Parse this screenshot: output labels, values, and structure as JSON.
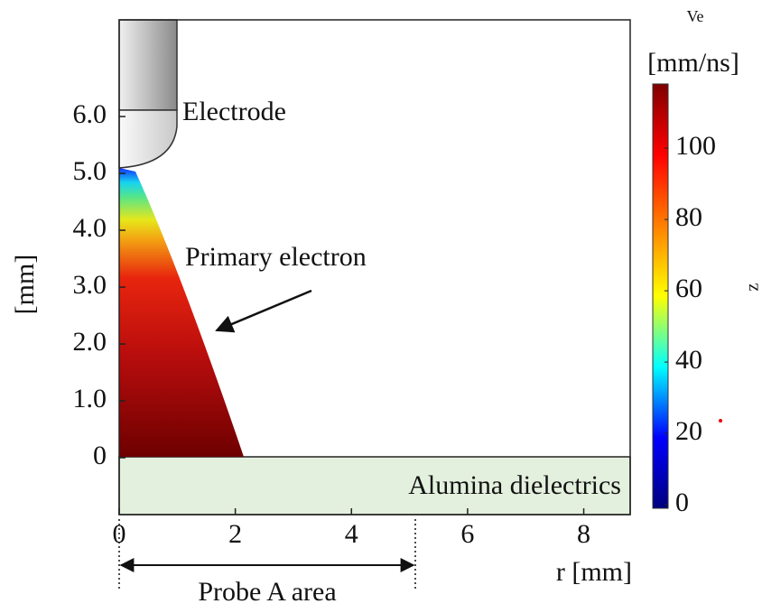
{
  "chart_data": {
    "type": "contour",
    "x_label": "r [mm]",
    "y_label": "[mm]",
    "xlim": [
      0,
      8.8
    ],
    "ylim": [
      -1,
      7.7
    ],
    "xticks": [
      0,
      2,
      4,
      6,
      8
    ],
    "yticks": [
      0,
      {
        "value": 1,
        "label": "1.0"
      },
      {
        "value": 2,
        "label": "2.0"
      },
      {
        "value": 3,
        "label": "3.0"
      },
      {
        "value": 4,
        "label": "4.0"
      },
      {
        "value": 5,
        "label": "5.0"
      },
      {
        "value": 6,
        "label": "6.0"
      }
    ],
    "colorbar": {
      "title": "Ve",
      "unit": "[mm/ns]",
      "side_label": "z",
      "lim": [
        -1,
        118
      ],
      "ticks": [
        0,
        20,
        40,
        60,
        80,
        100
      ],
      "colormap": [
        "#00007f",
        "#0000ff",
        "#00ffff",
        "#ffff00",
        "#ff7f00",
        "#ff0000",
        "#7f0000"
      ]
    },
    "annotations": {
      "electrode": "Electrode",
      "beam": "Primary electron",
      "dielectric": "Alumina dielectrics",
      "probe": "Probe A area"
    }
  }
}
